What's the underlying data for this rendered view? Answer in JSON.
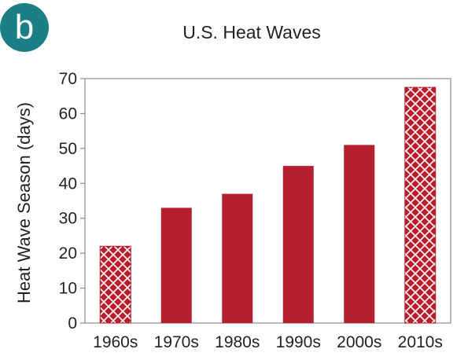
{
  "panel_badge": {
    "letter": "b",
    "color": "#1a7f86"
  },
  "colors": {
    "bar": "#b5202e",
    "hatch_lines": "#ffffff",
    "frame": "#8c8c8c",
    "text": "#222222"
  },
  "chart_data": {
    "type": "bar",
    "title": "U.S. Heat Waves",
    "xlabel": "",
    "ylabel": "Heat Wave Season (days)",
    "categories": [
      "1960s",
      "1970s",
      "1980s",
      "1990s",
      "2000s",
      "2010s"
    ],
    "values": [
      22,
      33,
      37,
      45,
      51,
      67.5
    ],
    "hatched": [
      true,
      false,
      false,
      false,
      false,
      true
    ],
    "ylim": [
      0,
      70
    ],
    "yticks": [
      0,
      10,
      20,
      30,
      40,
      50,
      60,
      70
    ],
    "grid": false,
    "legend": "none"
  }
}
